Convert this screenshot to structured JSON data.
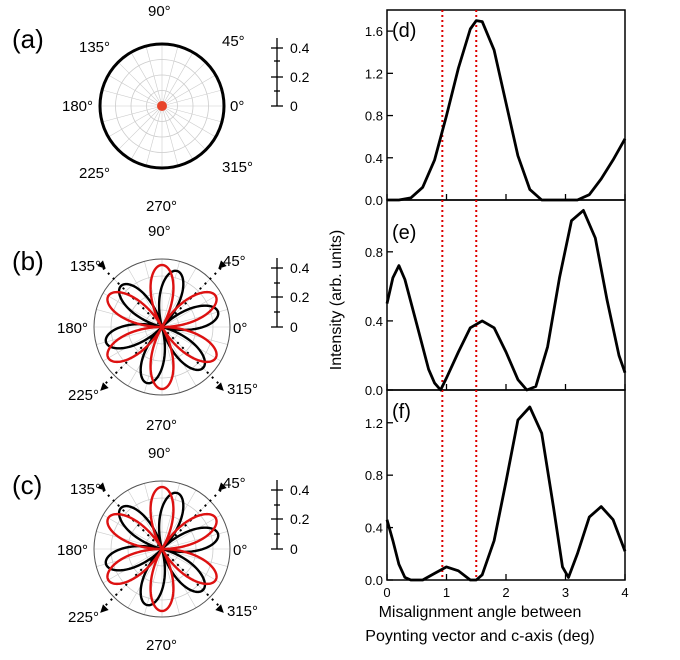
{
  "polar_panels": [
    {
      "letter": "(a)",
      "angle_labels": {
        "a0": "0°",
        "a45": "45°",
        "a90": "90°",
        "a135": "135°",
        "a180": "180°",
        "a225": "225°",
        "a270": "270°",
        "a315": "315°"
      },
      "scale_ticks": [
        "0.4",
        "0.2",
        "0"
      ]
    },
    {
      "letter": "(b)",
      "angle_labels": {
        "a0": "0°",
        "a45": "45°",
        "a90": "90°",
        "a135": "135°",
        "a180": "180°",
        "a225": "225°",
        "a270": "270°",
        "a315": "315°"
      },
      "scale_ticks": [
        "0.4",
        "0.2",
        "0"
      ]
    },
    {
      "letter": "(c)",
      "angle_labels": {
        "a0": "0°",
        "a45": "45°",
        "a90": "90°",
        "a135": "135°",
        "a180": "180°",
        "a225": "225°",
        "a270": "270°",
        "a315": "315°"
      },
      "scale_ticks": [
        "0.4",
        "0.2",
        "0"
      ]
    }
  ],
  "chart_data": [
    {
      "type": "line",
      "panel": "(d)",
      "xlim": [
        0,
        4
      ],
      "ylim": [
        0,
        1.8
      ],
      "yticks": [
        "0.0",
        "0.4",
        "0.8",
        "1.2",
        "1.6"
      ],
      "x": [
        0,
        0.2,
        0.4,
        0.6,
        0.8,
        1.0,
        1.2,
        1.4,
        1.5,
        1.6,
        1.8,
        2.0,
        2.2,
        2.4,
        2.6,
        2.8,
        3.0,
        3.2,
        3.4,
        3.6,
        3.8,
        4.0
      ],
      "y": [
        0,
        0,
        0.02,
        0.12,
        0.38,
        0.8,
        1.25,
        1.62,
        1.7,
        1.69,
        1.42,
        0.92,
        0.42,
        0.1,
        0,
        0,
        0,
        0,
        0.05,
        0.2,
        0.38,
        0.58
      ]
    },
    {
      "type": "line",
      "panel": "(e)",
      "xlim": [
        0,
        4
      ],
      "ylim": [
        0,
        1.1
      ],
      "yticks": [
        "0.0",
        "0.4",
        "0.8"
      ],
      "x": [
        0,
        0.1,
        0.2,
        0.3,
        0.5,
        0.7,
        0.8,
        0.9,
        1.0,
        1.2,
        1.4,
        1.6,
        1.8,
        2.0,
        2.2,
        2.35,
        2.5,
        2.7,
        2.9,
        3.1,
        3.3,
        3.5,
        3.7,
        3.9,
        4.0
      ],
      "y": [
        0.5,
        0.65,
        0.72,
        0.64,
        0.38,
        0.12,
        0.04,
        0,
        0.07,
        0.22,
        0.36,
        0.4,
        0.36,
        0.22,
        0.06,
        0,
        0.02,
        0.25,
        0.65,
        0.98,
        1.04,
        0.88,
        0.52,
        0.2,
        0.1
      ]
    },
    {
      "type": "line",
      "panel": "(f)",
      "xlim": [
        0,
        4
      ],
      "ylim": [
        0,
        1.45
      ],
      "yticks": [
        "0.0",
        "0.4",
        "0.8",
        "1.2"
      ],
      "x": [
        0,
        0.1,
        0.2,
        0.3,
        0.4,
        0.6,
        0.8,
        1.0,
        1.2,
        1.4,
        1.5,
        1.6,
        1.8,
        2.0,
        2.2,
        2.4,
        2.6,
        2.8,
        2.95,
        3.05,
        3.2,
        3.4,
        3.6,
        3.8,
        4.0
      ],
      "y": [
        0.46,
        0.3,
        0.12,
        0.02,
        0,
        0,
        0.05,
        0.1,
        0.07,
        0,
        0,
        0.04,
        0.3,
        0.75,
        1.22,
        1.32,
        1.12,
        0.55,
        0.1,
        0.02,
        0.2,
        0.48,
        0.56,
        0.46,
        0.22
      ]
    }
  ],
  "line_plots": {
    "in_letters": [
      "(d)",
      "(e)",
      "(f)"
    ],
    "xticks": [
      "0",
      "1",
      "2",
      "3",
      "4"
    ],
    "ylabel": "Intensity (arb. units)",
    "xlabel_line1": "Misalignment angle between",
    "xlabel_line2": "Poynting vector and c-axis (deg)",
    "guide_lines_x": [
      0.93,
      1.5
    ],
    "line_color": "#000000",
    "guide_color": "#dd0000"
  },
  "colors": {
    "black_lobes": "#000000",
    "red_lobes": "#dd1111",
    "grid": "#cccccc",
    "center_dot": "#e8442a"
  }
}
